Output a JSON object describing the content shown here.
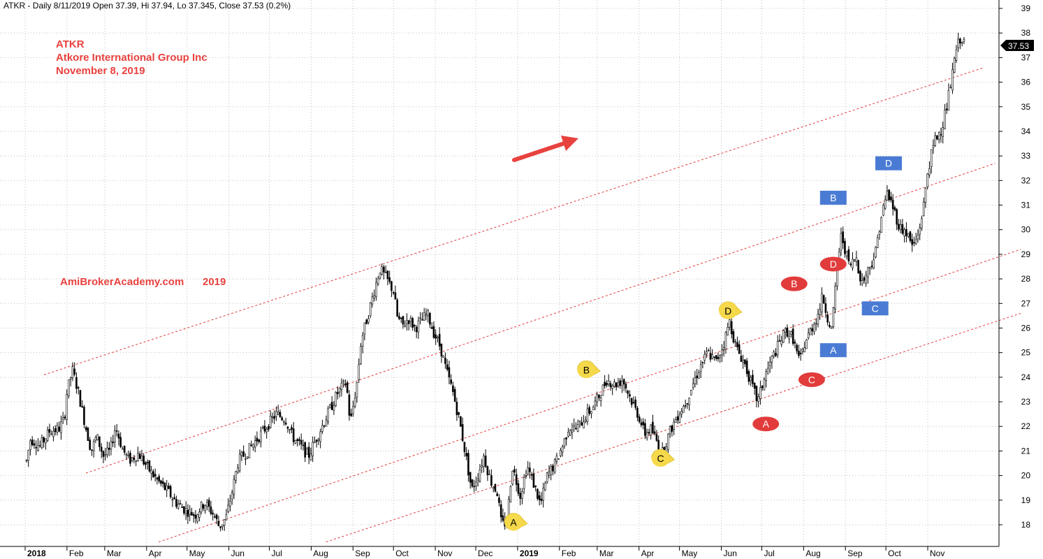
{
  "header": {
    "text": "ATKR - Daily 8/11/2019 Open 37.39, Hi 37.94, Lo 37.345, Close 37.53 (0.2%)"
  },
  "annotations": {
    "ticker": "ATKR",
    "company": "Atkore International Group Inc",
    "date": "November 8, 2019",
    "website": "AmiBrokerAcademy.com",
    "year": "2019",
    "text_color": "#e8423f"
  },
  "price_badge": {
    "label": "37.53",
    "value": 37.53
  },
  "chart_data": {
    "type": "candlestick",
    "title": "",
    "xlabel": "",
    "ylabel": "",
    "ylim": [
      17.3,
      39.3
    ],
    "y_ticks": [
      18,
      19,
      20,
      21,
      22,
      23,
      24,
      25,
      26,
      27,
      28,
      29,
      30,
      31,
      32,
      33,
      34,
      35,
      36,
      37,
      38,
      39
    ],
    "y_axis_position": "right",
    "grid": true,
    "x_axis_months": [
      {
        "label": "2018",
        "bold": true
      },
      {
        "label": "Feb"
      },
      {
        "label": "Mar"
      },
      {
        "label": "Apr"
      },
      {
        "label": "May"
      },
      {
        "label": "Jun"
      },
      {
        "label": "Jul"
      },
      {
        "label": "Aug"
      },
      {
        "label": "Sep"
      },
      {
        "label": "Oct"
      },
      {
        "label": "Nov"
      },
      {
        "label": "Dec"
      },
      {
        "label": "2019",
        "bold": true
      },
      {
        "label": "Feb"
      },
      {
        "label": "Mar"
      },
      {
        "label": "Apr"
      },
      {
        "label": "May"
      },
      {
        "label": "Jun"
      },
      {
        "label": "Jul"
      },
      {
        "label": "Aug"
      },
      {
        "label": "Sep"
      },
      {
        "label": "Oct"
      },
      {
        "label": "Nov"
      }
    ],
    "price_path": [
      [
        "2018-01-02",
        20.6
      ],
      [
        "2018-01-05",
        21.5
      ],
      [
        "2018-01-12",
        21.2
      ],
      [
        "2018-01-19",
        21.8
      ],
      [
        "2018-01-26",
        21.9
      ],
      [
        "2018-01-30",
        22.3
      ],
      [
        "2018-02-01",
        23.4
      ],
      [
        "2018-02-05",
        24.3
      ],
      [
        "2018-02-09",
        23.5
      ],
      [
        "2018-02-14",
        22.2
      ],
      [
        "2018-02-19",
        21.0
      ],
      [
        "2018-02-23",
        21.6
      ],
      [
        "2018-02-28",
        20.8
      ],
      [
        "2018-03-05",
        21.0
      ],
      [
        "2018-03-09",
        22.0
      ],
      [
        "2018-03-14",
        21.1
      ],
      [
        "2018-03-19",
        20.6
      ],
      [
        "2018-03-26",
        20.9
      ],
      [
        "2018-04-02",
        20.3
      ],
      [
        "2018-04-09",
        19.8
      ],
      [
        "2018-04-16",
        19.4
      ],
      [
        "2018-04-23",
        18.9
      ],
      [
        "2018-04-30",
        18.6
      ],
      [
        "2018-05-07",
        18.4
      ],
      [
        "2018-05-14",
        18.9
      ],
      [
        "2018-05-21",
        18.4
      ],
      [
        "2018-05-25",
        17.9
      ],
      [
        "2018-05-30",
        18.3
      ],
      [
        "2018-06-04",
        19.5
      ],
      [
        "2018-06-08",
        20.6
      ],
      [
        "2018-06-15",
        21.0
      ],
      [
        "2018-06-22",
        21.5
      ],
      [
        "2018-06-29",
        22.0
      ],
      [
        "2018-07-06",
        22.5
      ],
      [
        "2018-07-13",
        22.3
      ],
      [
        "2018-07-18",
        21.6
      ],
      [
        "2018-07-24",
        21.2
      ],
      [
        "2018-07-30",
        20.8
      ],
      [
        "2018-08-03",
        21.3
      ],
      [
        "2018-08-09",
        22.0
      ],
      [
        "2018-08-15",
        22.7
      ],
      [
        "2018-08-21",
        23.4
      ],
      [
        "2018-08-27",
        23.8
      ],
      [
        "2018-08-30",
        22.1
      ],
      [
        "2018-09-04",
        23.8
      ],
      [
        "2018-09-07",
        25.5
      ],
      [
        "2018-09-12",
        26.5
      ],
      [
        "2018-09-17",
        27.6
      ],
      [
        "2018-09-21",
        28.4
      ],
      [
        "2018-09-26",
        28.0
      ],
      [
        "2018-10-01",
        27.5
      ],
      [
        "2018-10-04",
        26.4
      ],
      [
        "2018-10-08",
        26.1
      ],
      [
        "2018-10-12",
        26.4
      ],
      [
        "2018-10-17",
        26.0
      ],
      [
        "2018-10-22",
        26.3
      ],
      [
        "2018-10-26",
        26.6
      ],
      [
        "2018-10-31",
        25.8
      ],
      [
        "2018-11-05",
        25.2
      ],
      [
        "2018-11-09",
        24.3
      ],
      [
        "2018-11-14",
        23.4
      ],
      [
        "2018-11-19",
        22.2
      ],
      [
        "2018-11-23",
        21.0
      ],
      [
        "2018-11-28",
        19.4
      ],
      [
        "2018-12-03",
        20.1
      ],
      [
        "2018-12-07",
        20.8
      ],
      [
        "2018-12-12",
        19.8
      ],
      [
        "2018-12-17",
        19.3
      ],
      [
        "2018-12-20",
        18.0
      ],
      [
        "2018-12-24",
        18.1
      ],
      [
        "2018-12-28",
        20.4
      ],
      [
        "2019-01-03",
        19.2
      ],
      [
        "2019-01-08",
        20.4
      ],
      [
        "2019-01-14",
        19.5
      ],
      [
        "2019-01-18",
        18.8
      ],
      [
        "2019-01-23",
        20.0
      ],
      [
        "2019-01-29",
        20.5
      ],
      [
        "2019-02-04",
        21.3
      ],
      [
        "2019-02-08",
        22.0
      ],
      [
        "2019-02-14",
        21.9
      ],
      [
        "2019-02-20",
        22.4
      ],
      [
        "2019-02-26",
        22.8
      ],
      [
        "2019-03-04",
        23.4
      ],
      [
        "2019-03-08",
        23.9
      ],
      [
        "2019-03-14",
        23.7
      ],
      [
        "2019-03-20",
        23.9
      ],
      [
        "2019-03-26",
        23.1
      ],
      [
        "2019-04-01",
        22.4
      ],
      [
        "2019-04-05",
        21.7
      ],
      [
        "2019-04-10",
        21.9
      ],
      [
        "2019-04-15",
        21.3
      ],
      [
        "2019-04-18",
        20.9
      ],
      [
        "2019-04-24",
        21.8
      ],
      [
        "2019-04-30",
        22.5
      ],
      [
        "2019-05-06",
        23.0
      ],
      [
        "2019-05-10",
        23.6
      ],
      [
        "2019-05-16",
        24.4
      ],
      [
        "2019-05-22",
        25.0
      ],
      [
        "2019-05-28",
        24.6
      ],
      [
        "2019-06-03",
        25.4
      ],
      [
        "2019-06-07",
        26.3
      ],
      [
        "2019-06-12",
        25.2
      ],
      [
        "2019-06-18",
        24.6
      ],
      [
        "2019-06-24",
        23.6
      ],
      [
        "2019-06-28",
        23.0
      ],
      [
        "2019-07-03",
        24.0
      ],
      [
        "2019-07-09",
        24.8
      ],
      [
        "2019-07-15",
        25.5
      ],
      [
        "2019-07-19",
        25.9
      ],
      [
        "2019-07-24",
        25.6
      ],
      [
        "2019-07-29",
        24.6
      ],
      [
        "2019-08-02",
        25.4
      ],
      [
        "2019-08-07",
        26.0
      ],
      [
        "2019-08-12",
        26.6
      ],
      [
        "2019-08-15",
        27.3
      ],
      [
        "2019-08-19",
        26.4
      ],
      [
        "2019-08-22",
        25.9
      ],
      [
        "2019-08-26",
        28.6
      ],
      [
        "2019-08-29",
        29.8
      ],
      [
        "2019-09-04",
        28.5
      ],
      [
        "2019-09-09",
        28.9
      ],
      [
        "2019-09-13",
        27.8
      ],
      [
        "2019-09-18",
        28.4
      ],
      [
        "2019-09-23",
        29.0
      ],
      [
        "2019-09-27",
        30.4
      ],
      [
        "2019-10-02",
        31.5
      ],
      [
        "2019-10-07",
        30.8
      ],
      [
        "2019-10-11",
        30.1
      ],
      [
        "2019-10-16",
        29.9
      ],
      [
        "2019-10-21",
        29.3
      ],
      [
        "2019-10-25",
        29.8
      ],
      [
        "2019-10-29",
        31.0
      ],
      [
        "2019-11-01",
        32.4
      ],
      [
        "2019-11-06",
        33.6
      ],
      [
        "2019-11-11",
        34.1
      ],
      [
        "2019-11-15",
        35.0
      ],
      [
        "2019-11-19",
        36.2
      ],
      [
        "2019-11-22",
        37.3
      ],
      [
        "2019-11-26",
        37.9
      ],
      [
        "2019-11-28",
        37.5
      ]
    ],
    "channel_lines": [
      {
        "from": [
          "2018-01-15",
          24.1
        ],
        "to": [
          "2019-12-13",
          36.6
        ]
      },
      {
        "from": [
          "2018-02-15",
          20.1
        ],
        "to": [
          "2019-12-21",
          32.7
        ]
      },
      {
        "from": [
          "2018-04-10",
          17.3
        ],
        "to": [
          "2020-01-09",
          29.2
        ]
      },
      {
        "from": [
          "2018-08-12",
          17.3
        ],
        "to": [
          "2020-01-09",
          26.6
        ]
      }
    ],
    "wave_labels": [
      {
        "label": "A",
        "date": "2018-12-29",
        "y": 18.1,
        "style": "yellow-pointer"
      },
      {
        "label": "B",
        "date": "2019-02-21",
        "y": 24.3,
        "style": "yellow-pointer"
      },
      {
        "label": "C",
        "date": "2019-04-17",
        "y": 20.7,
        "style": "yellow-pointer"
      },
      {
        "label": "D",
        "date": "2019-06-06",
        "y": 26.7,
        "style": "yellow-pointer"
      },
      {
        "label": "A",
        "date": "2019-07-04",
        "y": 22.1,
        "style": "red-ellipse"
      },
      {
        "label": "B",
        "date": "2019-07-25",
        "y": 27.8,
        "style": "red-ellipse"
      },
      {
        "label": "C",
        "date": "2019-08-07",
        "y": 23.9,
        "style": "red-ellipse"
      },
      {
        "label": "D",
        "date": "2019-08-23",
        "y": 28.6,
        "style": "red-ellipse"
      },
      {
        "label": "A",
        "date": "2019-08-23",
        "y": 25.1,
        "style": "blue-box"
      },
      {
        "label": "B",
        "date": "2019-08-23",
        "y": 31.3,
        "style": "blue-box"
      },
      {
        "label": "C",
        "date": "2019-09-23",
        "y": 26.8,
        "style": "blue-box"
      },
      {
        "label": "D",
        "date": "2019-10-03",
        "y": 32.7,
        "style": "blue-box"
      }
    ],
    "colors": {
      "candle": "#000000",
      "channel": "#e03a3a",
      "grid": "#c0c0c0",
      "arrow": "#e8423f",
      "yellow_marker": "#f5d94a",
      "red_marker": "#e23b3b",
      "blue_marker": "#4a7bd4"
    }
  }
}
